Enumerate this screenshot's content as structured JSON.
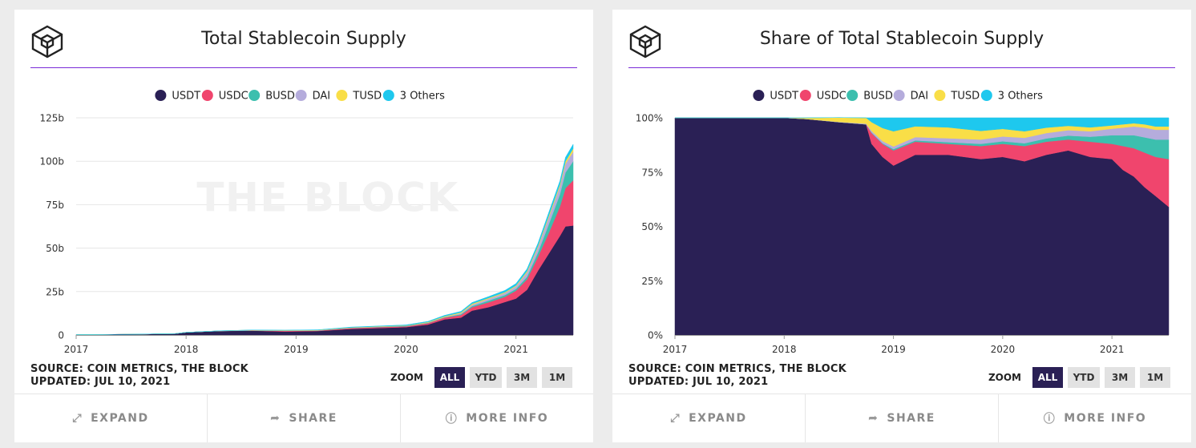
{
  "colors": {
    "USDT": "#2a2055",
    "USDC": "#f0456d",
    "BUSD": "#3cbfae",
    "DAI": "#b5acdc",
    "TUSD": "#f9de47",
    "3 Others": "#1ec8ee",
    "title_rule": "#7a2bd8",
    "active_zoom": "#2a2055"
  },
  "legend": [
    "USDT",
    "USDC",
    "BUSD",
    "DAI",
    "TUSD",
    "3 Others"
  ],
  "watermark": "THE BLOCK",
  "footer": {
    "expand": "EXPAND",
    "share": "SHARE",
    "more_info": "MORE INFO"
  },
  "zoom": {
    "label": "ZOOM",
    "options": [
      "ALL",
      "YTD",
      "3M",
      "1M"
    ],
    "active": "ALL"
  },
  "icons": [
    "block-logo-icon",
    "expand-icon",
    "share-icon",
    "info-icon"
  ],
  "charts": [
    {
      "title": "Total Stablecoin Supply",
      "source_line1": "SOURCE: COIN METRICS, THE BLOCK",
      "source_line2": "UPDATED: JUL 10, 2021"
    },
    {
      "title": "Share of Total Stablecoin Supply",
      "source_line1": "SOURCE: COIN METRICS, THE BLOCK",
      "source_line2": "UPDATED: JUL 10, 2021"
    }
  ],
  "chart_data": [
    {
      "type": "area",
      "stacked": true,
      "title": "Total Stablecoin Supply",
      "xlabel": "",
      "ylabel": "",
      "x_ticks": [
        "2017",
        "2018",
        "2019",
        "2020",
        "2021"
      ],
      "y_ticks": [
        "0",
        "25b",
        "50b",
        "75b",
        "100b",
        "125b"
      ],
      "ylim": [
        0,
        125
      ],
      "xlim": [
        2017.0,
        2021.52
      ],
      "grid": true,
      "legend_position": "top",
      "x": [
        2017.0,
        2017.5,
        2017.9,
        2018.0,
        2018.3,
        2018.6,
        2018.9,
        2019.2,
        2019.5,
        2019.8,
        2020.0,
        2020.2,
        2020.35,
        2020.5,
        2020.6,
        2020.75,
        2020.9,
        2021.0,
        2021.1,
        2021.2,
        2021.3,
        2021.4,
        2021.45,
        2021.52
      ],
      "series": [
        {
          "name": "USDT",
          "values": [
            0.2,
            0.4,
            0.8,
            1.5,
            2.3,
            2.5,
            2.0,
            2.3,
            3.5,
            4.1,
            4.5,
            6.0,
            9.0,
            10.0,
            14.0,
            16.0,
            19.0,
            21.0,
            26.0,
            37.0,
            47.0,
            57.0,
            62.5,
            63.0
          ]
        },
        {
          "name": "USDC",
          "values": [
            0.0,
            0.0,
            0.0,
            0.0,
            0.0,
            0.15,
            0.4,
            0.3,
            0.45,
            0.5,
            0.5,
            0.8,
            1.0,
            1.5,
            2.0,
            2.8,
            3.0,
            4.5,
            6.0,
            8.0,
            12.0,
            17.0,
            22.0,
            26.0
          ]
        },
        {
          "name": "BUSD",
          "values": [
            0.0,
            0.0,
            0.0,
            0.0,
            0.0,
            0.0,
            0.0,
            0.0,
            0.1,
            0.2,
            0.2,
            0.2,
            0.2,
            0.5,
            0.6,
            1.0,
            1.0,
            1.0,
            1.5,
            2.5,
            5.0,
            7.0,
            9.0,
            11.0
          ]
        },
        {
          "name": "DAI",
          "values": [
            0.0,
            0.0,
            0.0,
            0.0,
            0.05,
            0.05,
            0.1,
            0.1,
            0.1,
            0.1,
            0.1,
            0.15,
            0.2,
            0.5,
            0.8,
            1.0,
            1.2,
            1.5,
            2.5,
            3.0,
            4.0,
            4.5,
            5.0,
            5.5
          ]
        },
        {
          "name": "TUSD",
          "values": [
            0.0,
            0.0,
            0.0,
            0.0,
            0.05,
            0.15,
            0.2,
            0.2,
            0.2,
            0.2,
            0.2,
            0.3,
            0.4,
            0.5,
            0.6,
            0.5,
            0.5,
            0.5,
            0.7,
            0.8,
            1.0,
            1.2,
            1.5,
            1.8
          ]
        },
        {
          "name": "3 Others",
          "values": [
            0.0,
            0.0,
            0.0,
            0.0,
            0.0,
            0.0,
            0.05,
            0.1,
            0.2,
            0.2,
            0.3,
            0.4,
            0.5,
            0.6,
            0.7,
            0.8,
            1.0,
            1.1,
            1.3,
            1.5,
            1.8,
            2.0,
            2.2,
            2.5
          ]
        }
      ]
    },
    {
      "type": "area",
      "stacked": true,
      "normalized": true,
      "title": "Share of Total Stablecoin Supply",
      "xlabel": "",
      "ylabel": "",
      "x_ticks": [
        "2017",
        "2018",
        "2019",
        "2020",
        "2021"
      ],
      "y_ticks": [
        "0%",
        "25%",
        "50%",
        "75%",
        "100%"
      ],
      "ylim": [
        0,
        100
      ],
      "xlim": [
        2017.0,
        2021.52
      ],
      "grid": true,
      "legend_position": "top",
      "x": [
        2017.0,
        2017.5,
        2018.0,
        2018.2,
        2018.5,
        2018.75,
        2018.8,
        2018.9,
        2019.0,
        2019.2,
        2019.5,
        2019.8,
        2020.0,
        2020.2,
        2020.4,
        2020.6,
        2020.8,
        2021.0,
        2021.1,
        2021.2,
        2021.3,
        2021.4,
        2021.52
      ],
      "series": [
        {
          "name": "USDT",
          "values": [
            100,
            100,
            100,
            99.5,
            98,
            97,
            88,
            82,
            78,
            83,
            83,
            81,
            82,
            80,
            83,
            85,
            82,
            81,
            76,
            73,
            68,
            64,
            59
          ]
        },
        {
          "name": "USDC",
          "values": [
            0,
            0,
            0,
            0,
            0,
            0,
            5,
            6,
            7,
            6,
            5,
            6,
            6,
            7,
            6,
            5,
            7,
            7,
            11,
            13,
            16,
            18,
            22
          ]
        },
        {
          "name": "BUSD",
          "values": [
            0,
            0,
            0,
            0,
            0,
            0,
            0.2,
            0.3,
            0.6,
            0.6,
            0.8,
            1.0,
            1.2,
            1.3,
            1.5,
            1.8,
            2.3,
            4.0,
            5.0,
            6.0,
            7.0,
            8.0,
            9.0
          ]
        },
        {
          "name": "DAI",
          "values": [
            0,
            0,
            0,
            0,
            0.1,
            0.3,
            0.8,
            1.0,
            1.2,
            1.5,
            1.8,
            2.0,
            2.2,
            2.5,
            2.5,
            2.5,
            2.5,
            3.0,
            3.5,
            4.0,
            4.5,
            4.5,
            4.5
          ]
        },
        {
          "name": "TUSD",
          "values": [
            0,
            0,
            0,
            0.5,
            2,
            2.7,
            4,
            6,
            7,
            5,
            5,
            4,
            3.5,
            3.0,
            2.5,
            2.0,
            1.8,
            1.5,
            1.5,
            1.5,
            1.5,
            1.5,
            1.5
          ]
        },
        {
          "name": "3 Others",
          "values": [
            0,
            0,
            0,
            0,
            0,
            0,
            2,
            4.7,
            6.2,
            3.9,
            4.4,
            6.0,
            5.1,
            6.2,
            4.5,
            3.7,
            4.4,
            3.5,
            3.0,
            2.5,
            3.0,
            4.0,
            4.0
          ]
        }
      ]
    }
  ]
}
